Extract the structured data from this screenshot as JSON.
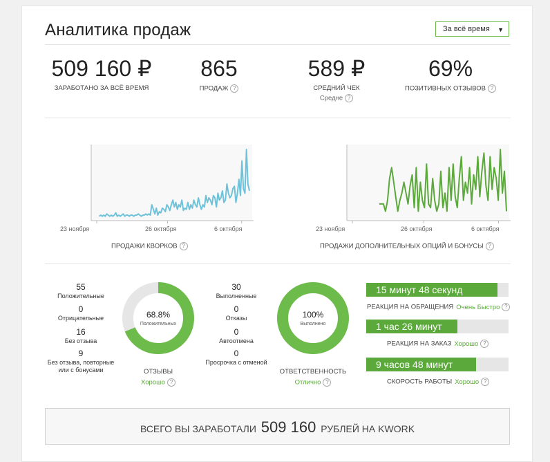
{
  "header": {
    "title": "Аналитика продаж",
    "period": "За всё время"
  },
  "stats": [
    {
      "value": "509 160 ₽",
      "label": "ЗАРАБОТАНО ЗА ВСЁ ВРЕМЯ",
      "sub": ""
    },
    {
      "value": "865",
      "label": "ПРОДАЖ",
      "sub": ""
    },
    {
      "value": "589 ₽",
      "label": "СРЕДНИЙ ЧЕК",
      "sub": "Средне"
    },
    {
      "value": "69%",
      "label": "ПОЗИТИВНЫХ ОТЗЫВОВ",
      "sub": ""
    }
  ],
  "chart_data": [
    {
      "type": "line",
      "title": "ПРОДАЖИ КВОРКОВ",
      "xticks": [
        "23 ноября",
        "26 октября",
        "6 октября"
      ],
      "color": "#6ec2d9",
      "values": [
        2,
        3,
        2,
        3,
        2,
        4,
        3,
        2,
        3,
        2,
        3,
        5,
        2,
        3,
        2,
        3,
        4,
        2,
        3,
        3,
        2,
        3,
        3,
        2,
        3,
        3,
        4,
        3,
        2,
        3,
        3,
        4,
        3,
        4,
        3,
        12,
        8,
        4,
        9,
        3,
        6,
        5,
        9,
        8,
        6,
        12,
        10,
        7,
        12,
        16,
        10,
        14,
        8,
        12,
        10,
        16,
        7,
        9,
        8,
        14,
        8,
        12,
        9,
        16,
        12,
        10,
        18,
        12,
        8,
        12,
        10,
        20,
        14,
        18,
        16,
        12,
        20,
        18,
        10,
        22,
        16,
        18,
        24,
        14,
        16,
        30,
        22,
        18,
        20,
        26,
        28,
        14,
        22,
        34,
        20,
        50,
        26,
        22,
        60,
        30,
        24
      ]
    },
    {
      "type": "line",
      "title": "ПРОДАЖИ ДОПОЛНИТЕЛЬНЫХ ОПЦИЙ И БОНУСЫ",
      "xticks": [
        "23 ноября",
        "26 октября",
        "6 октября"
      ],
      "color": "#5aa93a",
      "values": [
        8,
        8,
        8,
        4,
        10,
        22,
        28,
        20,
        12,
        4,
        10,
        14,
        20,
        14,
        8,
        18,
        24,
        6,
        28,
        4,
        20,
        10,
        6,
        30,
        8,
        6,
        22,
        10,
        4,
        8,
        26,
        6,
        14,
        4,
        28,
        10,
        30,
        12,
        6,
        22,
        34,
        10,
        20,
        14,
        28,
        8,
        24,
        16,
        34,
        12,
        26,
        36,
        18,
        10,
        34,
        16,
        28,
        22,
        10,
        38,
        14,
        26,
        4
      ]
    }
  ],
  "reviews": {
    "items": [
      {
        "count": "55",
        "label": "Положительные"
      },
      {
        "count": "0",
        "label": "Отрицательные"
      },
      {
        "count": "16",
        "label": "Без отзыва"
      },
      {
        "count": "9",
        "label": "Без отзыва, повторные или с бонусами"
      }
    ],
    "percent": 68.8,
    "center_value": "68.8%",
    "center_label": "Положительных",
    "caption": "ОТЗЫВЫ",
    "rating": "Хорошо"
  },
  "orders": {
    "items": [
      {
        "count": "30",
        "label": "Выполненные"
      },
      {
        "count": "0",
        "label": "Отказы"
      },
      {
        "count": "0",
        "label": "Автоотмена"
      },
      {
        "count": "0",
        "label": "Просрочка с отменой"
      }
    ],
    "percent": 100,
    "center_value": "100%",
    "center_label": "Выполнено",
    "caption": "ОТВЕТСТВЕННОСТЬ",
    "rating": "Отлично"
  },
  "speed": [
    {
      "value": "15 минут 48 секунд",
      "label": "РЕАКЦИЯ НА ОБРАЩЕНИЯ",
      "rating": "Очень Быстро",
      "fill": 0.92
    },
    {
      "value": "1 час 26 минут",
      "label": "РЕАКЦИЯ НА ЗАКАЗ",
      "rating": "Хорошо",
      "fill": 0.64
    },
    {
      "value": "9 часов 48 минут",
      "label": "СКОРОСТЬ РАБОТЫ",
      "rating": "Хорошо",
      "fill": 0.77
    }
  ],
  "total": {
    "prefix": "ВСЕГО ВЫ ЗАРАБОТАЛИ",
    "amount": "509 160",
    "suffix": "РУБЛЕЙ НА KWORK"
  },
  "colors": {
    "accent": "#5aa93a",
    "line1": "#6ec2d9",
    "ring_bg": "#e6e6e6"
  },
  "help_icon": "?"
}
